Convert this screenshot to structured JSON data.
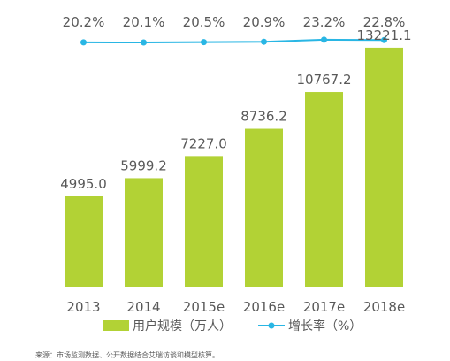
{
  "chart_data": {
    "type": "bar",
    "categories": [
      "2013",
      "2014",
      "2015e",
      "2016e",
      "2017e",
      "2018e"
    ],
    "series": [
      {
        "name": "用户规模（万人）",
        "type": "bar",
        "values": [
          4995.0,
          5999.2,
          7227.0,
          8736.2,
          10767.2,
          13221.1
        ],
        "labels": [
          "4995.0",
          "5999.2",
          "7227.0",
          "8736.2",
          "10767.2",
          "13221.1"
        ]
      },
      {
        "name": "增长率（%）",
        "type": "line",
        "values": [
          20.2,
          20.1,
          20.5,
          20.9,
          23.2,
          22.8
        ],
        "labels": [
          "20.2%",
          "20.1%",
          "20.5%",
          "20.9%",
          "23.2%",
          "22.8%"
        ]
      }
    ],
    "ylim": [
      0,
      14000
    ],
    "grid": false,
    "legend_position": "bottom",
    "colors": {
      "bar": "#b2d235",
      "line": "#29b6e4",
      "text": "#595959"
    }
  },
  "footnote": "来源：市场监测数据、公开数据结合艾瑞访谈和模型核算。"
}
